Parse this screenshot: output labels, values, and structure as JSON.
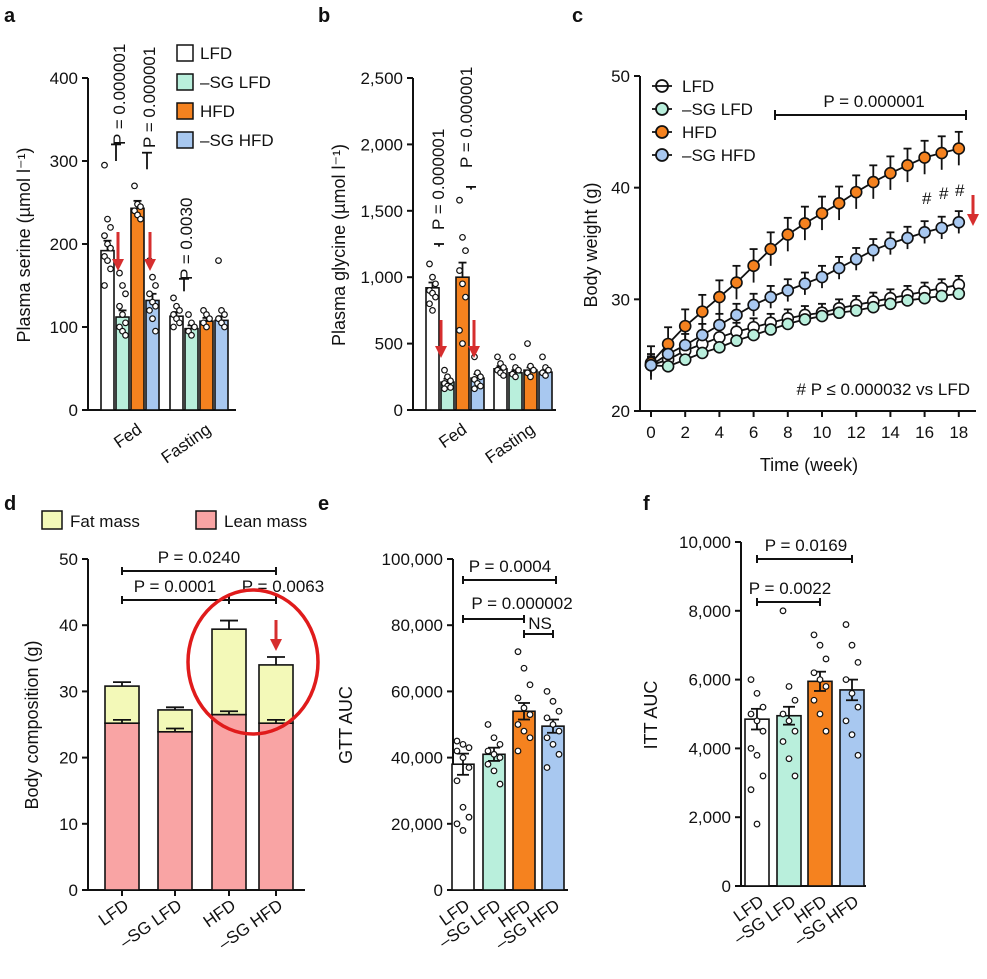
{
  "colors": {
    "lfd": "#ffffff",
    "sg_lfd": "#b9efdc",
    "hfd": "#f5821f",
    "sg_hfd": "#a8c8f0",
    "fat": "#f3f9b8",
    "lean": "#f9a4a4",
    "arrow": "#d62e2e",
    "circle": "#e01b1b"
  },
  "chart_data": [
    {
      "panel": "a",
      "type": "bar",
      "title": "",
      "xlabel": "",
      "ylabel": "Plasma serine (µmol l⁻¹)",
      "ylim": [
        0,
        400
      ],
      "yticks": [
        "0",
        "100",
        "200",
        "300",
        "400"
      ],
      "categories": [
        "Fed",
        "Fasting"
      ],
      "series": [
        {
          "name": "LFD",
          "values": [
            192,
            113
          ],
          "sem": [
            12,
            5
          ]
        },
        {
          "name": "–SG LFD",
          "values": [
            112,
            98
          ],
          "sem": [
            8,
            4
          ]
        },
        {
          "name": "HFD",
          "values": [
            243,
            107
          ],
          "sem": [
            9,
            4
          ]
        },
        {
          "name": "–SG HFD",
          "values": [
            132,
            108
          ],
          "sem": [
            8,
            5
          ]
        }
      ],
      "points": {
        "Fed": [
          [
            295,
            230,
            220,
            210,
            200,
            195,
            185,
            180,
            170,
            150
          ],
          [
            165,
            150,
            140,
            125,
            115,
            105,
            100,
            95,
            90
          ],
          [
            270,
            248,
            245,
            240,
            235,
            230
          ],
          [
            180,
            160,
            150,
            140,
            130,
            125,
            120,
            110,
            95
          ]
        ],
        "Fasting": [
          [
            135,
            125,
            120,
            115,
            110,
            105,
            100
          ],
          [
            115,
            105,
            100,
            95,
            90
          ],
          [
            120,
            115,
            110,
            105,
            100
          ],
          [
            180,
            120,
            115,
            110,
            105,
            100
          ]
        ]
      },
      "annotations": [
        "P = 0.000001",
        "P = 0.000001",
        "P = 0.0030"
      ],
      "legend": [
        "LFD",
        "–SG LFD",
        "HFD",
        "–SG HFD"
      ]
    },
    {
      "panel": "b",
      "type": "bar",
      "title": "",
      "xlabel": "",
      "ylabel": "Plasma glycine (µmol l⁻¹)",
      "ylim": [
        0,
        2500
      ],
      "yticks": [
        "0",
        "500",
        "1,000",
        "1,500",
        "2,000",
        "2,500"
      ],
      "categories": [
        "Fed",
        "Fasting"
      ],
      "series": [
        {
          "name": "LFD",
          "values": [
            920,
            310
          ],
          "sem": [
            40,
            20
          ]
        },
        {
          "name": "–SG LFD",
          "values": [
            210,
            280
          ],
          "sem": [
            25,
            20
          ]
        },
        {
          "name": "HFD",
          "values": [
            1000,
            300
          ],
          "sem": [
            110,
            20
          ]
        },
        {
          "name": "–SG HFD",
          "values": [
            240,
            285
          ],
          "sem": [
            30,
            15
          ]
        }
      ],
      "points": {
        "Fed": [
          [
            1100,
            1000,
            950,
            900,
            880,
            850,
            800,
            750
          ],
          [
            300,
            250,
            220,
            200,
            180,
            170,
            160
          ],
          [
            1580,
            1300,
            1200,
            1050,
            950,
            850,
            600,
            500
          ],
          [
            400,
            280,
            250,
            230,
            200,
            180,
            160
          ]
        ],
        "Fasting": [
          [
            400,
            350,
            320,
            300,
            280,
            260
          ],
          [
            400,
            320,
            300,
            270,
            250
          ],
          [
            500,
            330,
            300,
            280,
            250
          ],
          [
            400,
            320,
            300,
            280,
            260
          ]
        ]
      },
      "annotations": [
        "P = 0.000001",
        "P = 0.000001"
      ]
    },
    {
      "panel": "c",
      "type": "line",
      "title": "",
      "xlabel": "Time (week)",
      "ylabel": "Body weight (g)",
      "xlim": [
        -0.5,
        19
      ],
      "ylim": [
        20,
        50
      ],
      "xticks": [
        "0",
        "2",
        "4",
        "6",
        "8",
        "10",
        "12",
        "14",
        "16",
        "18"
      ],
      "yticks": [
        "20",
        "30",
        "40",
        "50"
      ],
      "x": [
        0,
        1,
        2,
        3,
        4,
        5,
        6,
        7,
        8,
        9,
        10,
        11,
        12,
        13,
        14,
        15,
        16,
        17,
        18
      ],
      "series": [
        {
          "name": "LFD",
          "values": [
            24.1,
            24.6,
            25.4,
            26.0,
            26.6,
            27.1,
            27.5,
            27.9,
            28.3,
            28.6,
            28.8,
            29.2,
            29.5,
            29.8,
            30.1,
            30.4,
            30.7,
            31.0,
            31.3
          ],
          "sem": 0.8
        },
        {
          "name": "–SG LFD",
          "values": [
            24.1,
            24.0,
            24.6,
            25.2,
            25.7,
            26.3,
            26.8,
            27.3,
            27.8,
            28.2,
            28.5,
            28.8,
            29.0,
            29.3,
            29.6,
            29.9,
            30.1,
            30.3,
            30.5
          ],
          "sem": 0.7
        },
        {
          "name": "HFD",
          "values": [
            24.3,
            26.0,
            27.6,
            28.9,
            30.2,
            31.5,
            33.0,
            34.5,
            35.8,
            36.8,
            37.7,
            38.6,
            39.6,
            40.5,
            41.3,
            42.0,
            42.7,
            43.1,
            43.5
          ],
          "sem": 1.5
        },
        {
          "name": "–SG HFD",
          "values": [
            24.1,
            25.1,
            25.9,
            26.8,
            27.7,
            28.6,
            29.5,
            30.2,
            30.8,
            31.4,
            32.0,
            32.8,
            33.6,
            34.4,
            35.0,
            35.5,
            36.0,
            36.4,
            36.9
          ],
          "sem": 1.0
        }
      ],
      "annotations": [
        "P = 0.000001",
        "#",
        "#",
        "#"
      ],
      "footnote": "# P ≤ 0.000032 vs LFD",
      "legend": [
        "LFD",
        "–SG LFD",
        "HFD",
        "–SG HFD"
      ]
    },
    {
      "panel": "d",
      "type": "bar",
      "title": "",
      "xlabel": "",
      "ylabel": "Body composition (g)",
      "ylim": [
        0,
        50
      ],
      "yticks": [
        "0",
        "10",
        "20",
        "30",
        "40",
        "50"
      ],
      "categories": [
        "LFD",
        "–SG LFD",
        "HFD",
        "–SG HFD"
      ],
      "series": [
        {
          "name": "Lean mass",
          "values": [
            25.2,
            23.9,
            26.5,
            25.2
          ],
          "sem": [
            0.5,
            0.5,
            0.5,
            0.5
          ]
        },
        {
          "name": "Fat mass",
          "values": [
            5.6,
            3.3,
            12.9,
            8.8
          ],
          "sem": [
            0.6,
            0.4,
            1.3,
            1.2
          ]
        }
      ],
      "annotations": [
        "P = 0.0240",
        "P = 0.0001",
        "P = 0.0063"
      ],
      "legend": [
        "Fat mass",
        "Lean mass"
      ]
    },
    {
      "panel": "e",
      "type": "bar",
      "title": "",
      "xlabel": "",
      "ylabel": "GTT AUC",
      "ylim": [
        0,
        100000
      ],
      "yticks": [
        "0",
        "20,000",
        "40,000",
        "60,000",
        "80,000",
        "100,000"
      ],
      "categories": [
        "LFD",
        "–SG LFD",
        "HFD",
        "–SG HFD"
      ],
      "values": [
        38000,
        41000,
        54000,
        49500
      ],
      "sem": [
        3200,
        2000,
        2500,
        2000
      ],
      "points": [
        [
          45000,
          44000,
          43000,
          42000,
          40000,
          37000,
          33000,
          25000,
          22000,
          20000,
          18000
        ],
        [
          50000,
          46000,
          44000,
          42000,
          41000,
          40000,
          38000,
          36000,
          32000
        ],
        [
          72000,
          67000,
          62000,
          58000,
          55000,
          53000,
          50000,
          48000,
          46000,
          42000
        ],
        [
          60000,
          57000,
          54000,
          52000,
          50000,
          48000,
          46000,
          44000,
          41000,
          37000
        ]
      ],
      "annotations": [
        "P = 0.0004",
        "P = 0.000002",
        "NS"
      ]
    },
    {
      "panel": "f",
      "type": "bar",
      "title": "",
      "xlabel": "",
      "ylabel": "ITT AUC",
      "ylim": [
        0,
        10000
      ],
      "yticks": [
        "0",
        "2,000",
        "4,000",
        "6,000",
        "8,000",
        "10,000"
      ],
      "categories": [
        "LFD",
        "–SG LFD",
        "HFD",
        "–SG HFD"
      ],
      "values": [
        4850,
        4950,
        5950,
        5700
      ],
      "sem": [
        300,
        260,
        280,
        300
      ],
      "points": [
        [
          6000,
          5600,
          5200,
          5000,
          4800,
          4500,
          4000,
          3800,
          3200,
          2800,
          1800
        ],
        [
          8000,
          5800,
          5400,
          5000,
          4800,
          4500,
          4200,
          3700,
          3200
        ],
        [
          7300,
          7000,
          6600,
          6200,
          6000,
          5800,
          5400,
          5000,
          4500
        ],
        [
          7600,
          7000,
          6500,
          6000,
          5600,
          5200,
          4800,
          4400,
          3800
        ]
      ],
      "annotations": [
        "P = 0.0169",
        "P = 0.0022"
      ]
    }
  ],
  "panel_labels": [
    "a",
    "b",
    "c",
    "d",
    "e",
    "f"
  ]
}
